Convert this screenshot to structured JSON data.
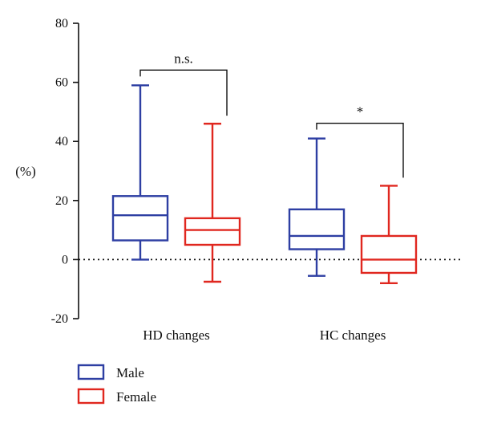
{
  "chart_data": {
    "type": "box",
    "ylabel": "(%)",
    "ylim": [
      -20,
      80
    ],
    "yticks": [
      -20,
      0,
      20,
      40,
      60,
      80
    ],
    "zero_line": "dotted",
    "categories": [
      "HD changes",
      "HC changes"
    ],
    "series": [
      {
        "name": "Male",
        "color": "#2e3fa3",
        "boxes": [
          {
            "min": 0,
            "q1": 6.5,
            "median": 15,
            "q3": 21.5,
            "max": 59
          },
          {
            "min": -5.5,
            "q1": 3.5,
            "median": 8,
            "q3": 17,
            "max": 41
          }
        ]
      },
      {
        "name": "Female",
        "color": "#e0271f",
        "boxes": [
          {
            "min": -7.5,
            "q1": 5,
            "median": 10,
            "q3": 14,
            "max": 46
          },
          {
            "min": -8,
            "q1": -4.5,
            "median": 0,
            "q3": 8,
            "max": 25
          }
        ]
      }
    ],
    "annotations": [
      {
        "category": "HD changes",
        "label": "n.s."
      },
      {
        "category": "HC changes",
        "label": "*"
      }
    ],
    "legend": {
      "position": "bottom-left",
      "entries": [
        "Male",
        "Female"
      ]
    }
  }
}
